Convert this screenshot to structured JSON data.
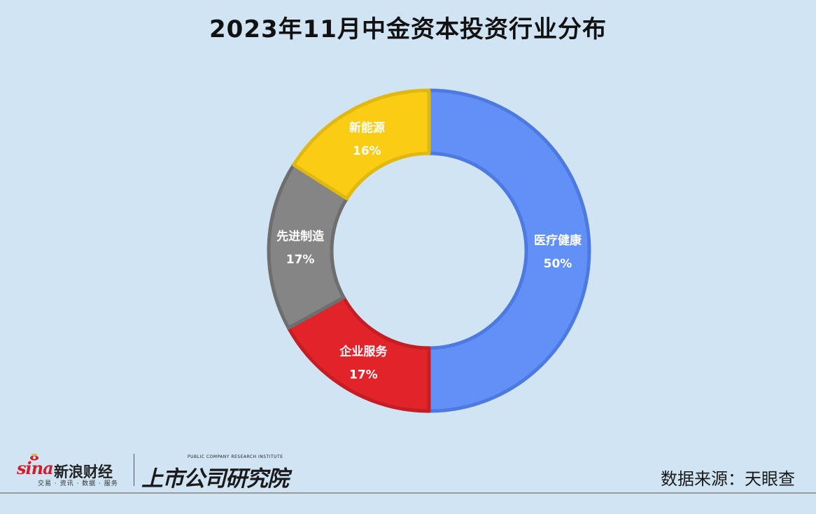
{
  "chart_data": {
    "type": "pie",
    "variant": "donut",
    "title": "2023年11月中金资本投资行业分布",
    "slices": [
      {
        "label": "医疗健康",
        "value": 50,
        "value_label": "50%",
        "color": "#6291f5",
        "stroke": "#4d7ae0"
      },
      {
        "label": "企业服务",
        "value": 17,
        "value_label": "17%",
        "color": "#e0242a",
        "stroke": "#c41d23"
      },
      {
        "label": "先进制造",
        "value": 17,
        "value_label": "17%",
        "color": "#858585",
        "stroke": "#6e6e6e"
      },
      {
        "label": "新能源",
        "value": 16,
        "value_label": "16%",
        "color": "#facd14",
        "stroke": "#e0b810"
      }
    ],
    "start": "12 o'clock",
    "direction": "clockwise",
    "legend": "none"
  },
  "footer": {
    "source": "数据来源：天眼查",
    "sina_logo_word": "sina",
    "sina_logo_cn": "新浪财经",
    "sina_logo_sub": "交易 · 资讯 · 数据 · 服务",
    "ssgs_logo_en": "PUBLIC COMPANY RESEARCH INSTITUTE",
    "ssgs_logo_cn": "上市公司研究院"
  },
  "colors": {
    "background": "#d0e4f4",
    "title": "#111111"
  }
}
